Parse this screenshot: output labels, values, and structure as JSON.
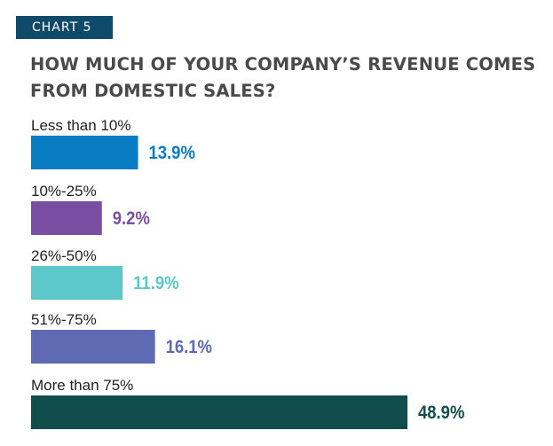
{
  "badge": "CHART 5",
  "chart_data": {
    "type": "bar",
    "orientation": "horizontal",
    "title": "HOW MUCH OF YOUR COMPANY’S REVENUE COMES FROM DOMESTIC SALES?",
    "categories": [
      "Less than 10%",
      "10%-25%",
      "26%-50%",
      "51%-75%",
      "More than 75%"
    ],
    "values": [
      13.9,
      9.2,
      11.9,
      16.1,
      48.9
    ],
    "value_labels": [
      "13.9%",
      "9.2%",
      "11.9%",
      "16.1%",
      "48.9%"
    ],
    "colors": [
      "#0a7cc4",
      "#7a4fa3",
      "#5cc8c9",
      "#5e6ab1",
      "#124d4d"
    ],
    "xlabel": "",
    "ylabel": "",
    "xlim": [
      0,
      50
    ],
    "grid": false
  }
}
